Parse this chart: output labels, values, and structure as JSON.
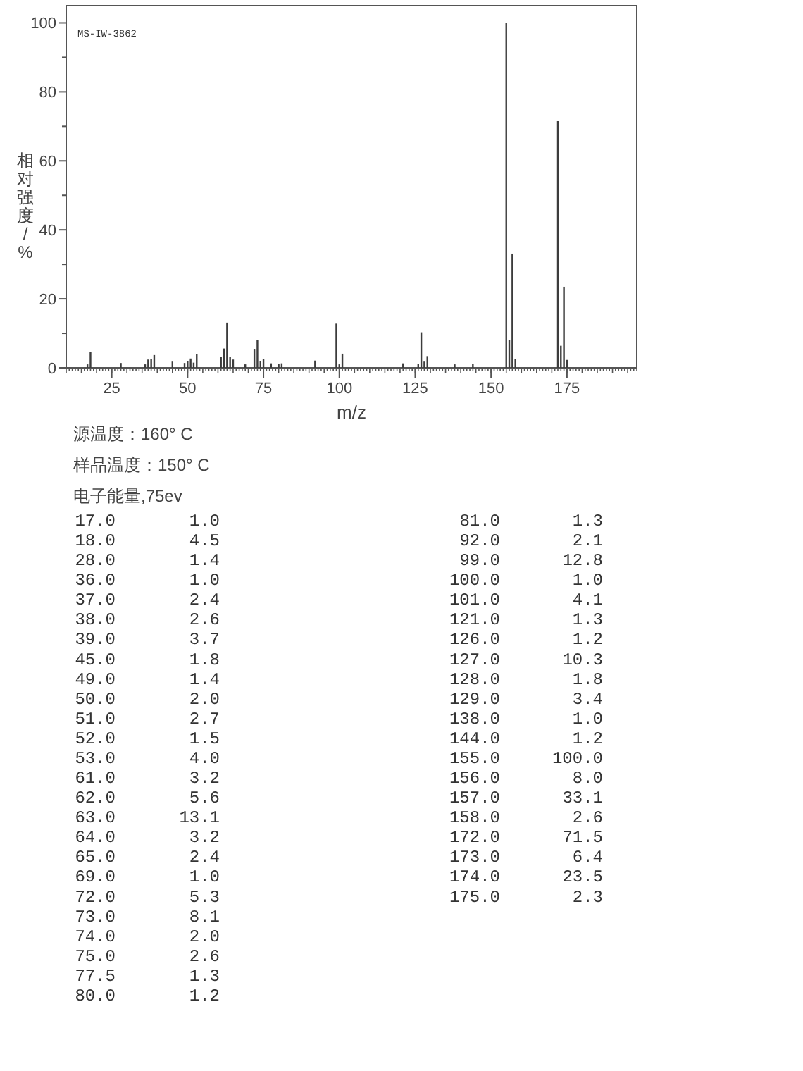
{
  "chart_data": {
    "type": "bar",
    "xlabel": "m/z",
    "ylabel": "相对强度/%",
    "x": [
      17,
      18,
      28,
      36,
      37,
      38,
      39,
      45,
      49,
      50,
      51,
      52,
      53,
      61,
      62,
      63,
      64,
      65,
      69,
      72,
      73,
      74,
      75,
      77.5,
      80,
      81,
      92,
      99,
      100,
      101,
      121,
      126,
      127,
      128,
      129,
      138,
      144,
      155,
      156,
      157,
      158,
      172,
      173,
      174,
      175
    ],
    "values": [
      1.0,
      4.5,
      1.4,
      1.0,
      2.4,
      2.6,
      3.7,
      1.8,
      1.4,
      2.0,
      2.7,
      1.5,
      4.0,
      3.2,
      5.6,
      13.1,
      3.2,
      2.4,
      1.0,
      5.3,
      8.1,
      2.0,
      2.6,
      1.3,
      1.2,
      1.3,
      2.1,
      12.8,
      1.0,
      4.1,
      1.3,
      1.2,
      10.3,
      1.8,
      3.4,
      1.0,
      1.2,
      100.0,
      8.0,
      33.1,
      2.6,
      71.5,
      6.4,
      23.5,
      2.3
    ],
    "color": "#3c3c3c",
    "xlim": [
      10,
      198
    ],
    "xticks": [
      25,
      50,
      75,
      100,
      125,
      150,
      175
    ],
    "ylim": [
      0,
      105
    ],
    "yticks": [
      0,
      {
        "value": 10,
        "label": null
      },
      20,
      {
        "value": 30,
        "label": null
      },
      40,
      {
        "value": 50,
        "label": null
      },
      60,
      {
        "value": 70,
        "label": null
      },
      80,
      {
        "value": 90,
        "label": null
      },
      100
    ],
    "annotations": [
      "MS-IW-3862",
      "源温度：160° C",
      "样品温度：150° C",
      "电子能量,75ev",
      "17.0",
      "1.0",
      "18.0",
      "4.5",
      "28.0",
      "1.4",
      "36.0",
      "1.0",
      "37.0",
      "2.4",
      "38.0",
      "2.6",
      "39.0",
      "3.7",
      "45.0",
      "1.8",
      "49.0",
      "1.4",
      "50.0",
      "2.0",
      "51.0",
      "2.7",
      "52.0",
      "1.5",
      "53.0",
      "4.0",
      "61.0",
      "3.2",
      "62.0",
      "5.6",
      "63.0",
      "13.1",
      "64.0",
      "3.2",
      "65.0",
      "2.4",
      "69.0",
      "1.0",
      "72.0",
      "5.3",
      "73.0",
      "8.1",
      "74.0",
      "2.0",
      "75.0",
      "2.6",
      "77.5",
      "1.3",
      "80.0",
      "1.2",
      "81.0",
      "1.3",
      "92.0",
      "2.1",
      "99.0",
      "12.8",
      "100.0",
      "1.0",
      "101.0",
      "4.1",
      "121.0",
      "1.3",
      "126.0",
      "1.2",
      "127.0",
      "10.3",
      "128.0",
      "1.8",
      "129.0",
      "3.4",
      "138.0",
      "1.0",
      "144.0",
      "1.2",
      "155.0",
      "100.0",
      "156.0",
      "8.0",
      "157.0",
      "33.1",
      "158.0",
      "2.6",
      "172.0",
      "71.5",
      "173.0",
      "6.4",
      "174.0",
      "23.5",
      "175.0",
      "2.3"
    ]
  }
}
